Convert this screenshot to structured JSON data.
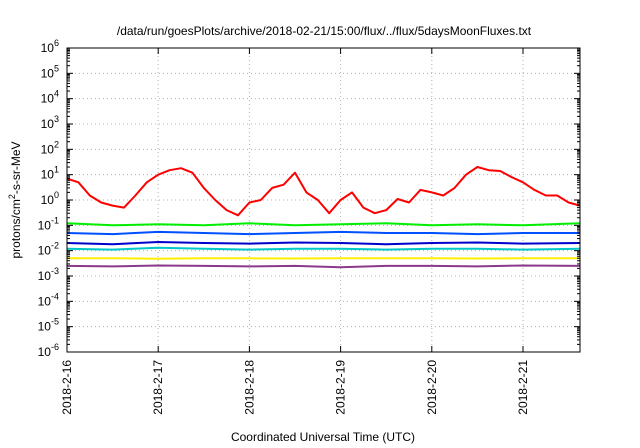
{
  "chart_data": {
    "type": "line",
    "title": "/data/run/goesPlots/archive/2018-02-21/15:00/flux/../flux/5daysMoonFluxes.txt",
    "xlabel": "Coordinated Universal Time (UTC)",
    "ylabel": {
      "prefix": "protons/cm",
      "sup": "2",
      "suffix": "-s-sr-MeV"
    },
    "x_start": "2018-2-16",
    "x_end": "2018-2-21 15:00",
    "x_tick_labels": [
      "2018-2-16",
      "2018-2-17",
      "2018-2-18",
      "2018-2-19",
      "2018-2-20",
      "2018-2-21"
    ],
    "y_scale": "log",
    "ylim": [
      1e-06,
      1000000.0
    ],
    "y_tick_labels": [
      {
        "base": "10",
        "exp": "-6"
      },
      {
        "base": "10",
        "exp": "-5"
      },
      {
        "base": "10",
        "exp": "-4"
      },
      {
        "base": "10",
        "exp": "-3"
      },
      {
        "base": "10",
        "exp": "-2"
      },
      {
        "base": "10",
        "exp": "-1"
      },
      {
        "base": "10",
        "exp": "0"
      },
      {
        "base": "10",
        "exp": "1"
      },
      {
        "base": "10",
        "exp": "2"
      },
      {
        "base": "10",
        "exp": "3"
      },
      {
        "base": "10",
        "exp": "4"
      },
      {
        "base": "10",
        "exp": "5"
      },
      {
        "base": "10",
        "exp": "6"
      }
    ],
    "grid": true,
    "series": [
      {
        "color": "#ff0000",
        "x": [
          "2018-2-16 00:00",
          "2018-2-16 03:00",
          "2018-2-16 06:00",
          "2018-2-16 09:00",
          "2018-2-16 12:00",
          "2018-2-16 15:00",
          "2018-2-16 18:00",
          "2018-2-16 21:00",
          "2018-2-17 00:00",
          "2018-2-17 03:00",
          "2018-2-17 06:00",
          "2018-2-17 09:00",
          "2018-2-17 12:00",
          "2018-2-17 15:00",
          "2018-2-17 18:00",
          "2018-2-17 21:00",
          "2018-2-18 00:00",
          "2018-2-18 03:00",
          "2018-2-18 06:00",
          "2018-2-18 09:00",
          "2018-2-18 12:00",
          "2018-2-18 15:00",
          "2018-2-18 18:00",
          "2018-2-18 21:00",
          "2018-2-19 00:00",
          "2018-2-19 03:00",
          "2018-2-19 06:00",
          "2018-2-19 09:00",
          "2018-2-19 12:00",
          "2018-2-19 15:00",
          "2018-2-19 18:00",
          "2018-2-19 21:00",
          "2018-2-20 00:00",
          "2018-2-20 03:00",
          "2018-2-20 06:00",
          "2018-2-20 09:00",
          "2018-2-20 12:00",
          "2018-2-20 15:00",
          "2018-2-20 18:00",
          "2018-2-20 21:00",
          "2018-2-21 00:00",
          "2018-2-21 03:00",
          "2018-2-21 06:00",
          "2018-2-21 09:00",
          "2018-2-21 12:00",
          "2018-2-21 15:00"
        ],
        "y": [
          7,
          5,
          1.5,
          0.8,
          0.6,
          0.5,
          1.5,
          5,
          10,
          15,
          18,
          12,
          3,
          1,
          0.4,
          0.25,
          0.8,
          1,
          3,
          4,
          12,
          2,
          1,
          0.3,
          1,
          2,
          0.5,
          0.3,
          0.4,
          1.1,
          0.8,
          2.5,
          2,
          1.5,
          3,
          10,
          20,
          15,
          14,
          8,
          5,
          2.5,
          1.5,
          1.5,
          0.8,
          0.6
        ]
      },
      {
        "color": "#00ee00",
        "x": [
          "2018-2-16 00:00",
          "2018-2-16 12:00",
          "2018-2-17 00:00",
          "2018-2-17 12:00",
          "2018-2-18 00:00",
          "2018-2-18 12:00",
          "2018-2-19 00:00",
          "2018-2-19 12:00",
          "2018-2-20 00:00",
          "2018-2-20 12:00",
          "2018-2-21 00:00",
          "2018-2-21 15:00"
        ],
        "y": [
          0.12,
          0.1,
          0.11,
          0.1,
          0.12,
          0.1,
          0.11,
          0.12,
          0.1,
          0.11,
          0.1,
          0.12
        ]
      },
      {
        "color": "#0050ff",
        "x": [
          "2018-2-16 00:00",
          "2018-2-16 12:00",
          "2018-2-17 00:00",
          "2018-2-17 12:00",
          "2018-2-18 00:00",
          "2018-2-18 12:00",
          "2018-2-19 00:00",
          "2018-2-19 12:00",
          "2018-2-20 00:00",
          "2018-2-20 12:00",
          "2018-2-21 00:00",
          "2018-2-21 15:00"
        ],
        "y": [
          0.05,
          0.045,
          0.055,
          0.05,
          0.045,
          0.05,
          0.055,
          0.05,
          0.05,
          0.045,
          0.05,
          0.05
        ]
      },
      {
        "color": "#0000cc",
        "x": [
          "2018-2-16 00:00",
          "2018-2-16 12:00",
          "2018-2-17 00:00",
          "2018-2-17 12:00",
          "2018-2-18 00:00",
          "2018-2-18 12:00",
          "2018-2-19 00:00",
          "2018-2-19 12:00",
          "2018-2-20 00:00",
          "2018-2-20 12:00",
          "2018-2-21 00:00",
          "2018-2-21 15:00"
        ],
        "y": [
          0.02,
          0.018,
          0.022,
          0.02,
          0.019,
          0.021,
          0.02,
          0.018,
          0.02,
          0.021,
          0.019,
          0.02
        ]
      },
      {
        "color": "#00c8c8",
        "x": [
          "2018-2-16 00:00",
          "2018-2-16 12:00",
          "2018-2-17 00:00",
          "2018-2-17 12:00",
          "2018-2-18 00:00",
          "2018-2-18 12:00",
          "2018-2-19 00:00",
          "2018-2-19 12:00",
          "2018-2-20 00:00",
          "2018-2-20 12:00",
          "2018-2-21 00:00",
          "2018-2-21 15:00"
        ],
        "y": [
          0.012,
          0.011,
          0.013,
          0.012,
          0.011,
          0.012,
          0.012,
          0.011,
          0.012,
          0.012,
          0.011,
          0.012
        ]
      },
      {
        "color": "#ffee00",
        "x": [
          "2018-2-16 00:00",
          "2018-2-16 12:00",
          "2018-2-17 00:00",
          "2018-2-17 12:00",
          "2018-2-18 00:00",
          "2018-2-18 12:00",
          "2018-2-19 00:00",
          "2018-2-19 12:00",
          "2018-2-20 00:00",
          "2018-2-20 12:00",
          "2018-2-21 00:00",
          "2018-2-21 15:00"
        ],
        "y": [
          0.005,
          0.005,
          0.0048,
          0.005,
          0.005,
          0.0049,
          0.005,
          0.005,
          0.005,
          0.0049,
          0.005,
          0.005
        ]
      },
      {
        "color": "#8b3a8b",
        "x": [
          "2018-2-16 00:00",
          "2018-2-16 12:00",
          "2018-2-17 00:00",
          "2018-2-17 12:00",
          "2018-2-18 00:00",
          "2018-2-18 12:00",
          "2018-2-19 00:00",
          "2018-2-19 12:00",
          "2018-2-20 00:00",
          "2018-2-20 12:00",
          "2018-2-21 00:00",
          "2018-2-21 15:00"
        ],
        "y": [
          0.0025,
          0.0024,
          0.0026,
          0.0025,
          0.0024,
          0.0025,
          0.0022,
          0.0025,
          0.0025,
          0.0024,
          0.0026,
          0.0025
        ]
      }
    ]
  }
}
